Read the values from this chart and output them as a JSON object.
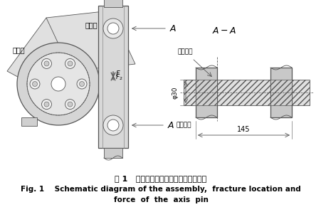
{
  "title_cn": "图 1   轴销装配，断裂位置与受力示意图",
  "title_en_line1": "Fig. 1    Schematic diagram of the assembly,  fracture location and",
  "title_en_line2": "force  of  the  axis  pin",
  "bg_color": "#ffffff",
  "fig_width": 4.52,
  "fig_height": 2.98,
  "dpi": 100,
  "line_color": "#555555",
  "fill_light": "#cccccc",
  "fill_mid": "#aaaaaa",
  "fill_dark": "#888888",
  "hatch_color": "#999999"
}
